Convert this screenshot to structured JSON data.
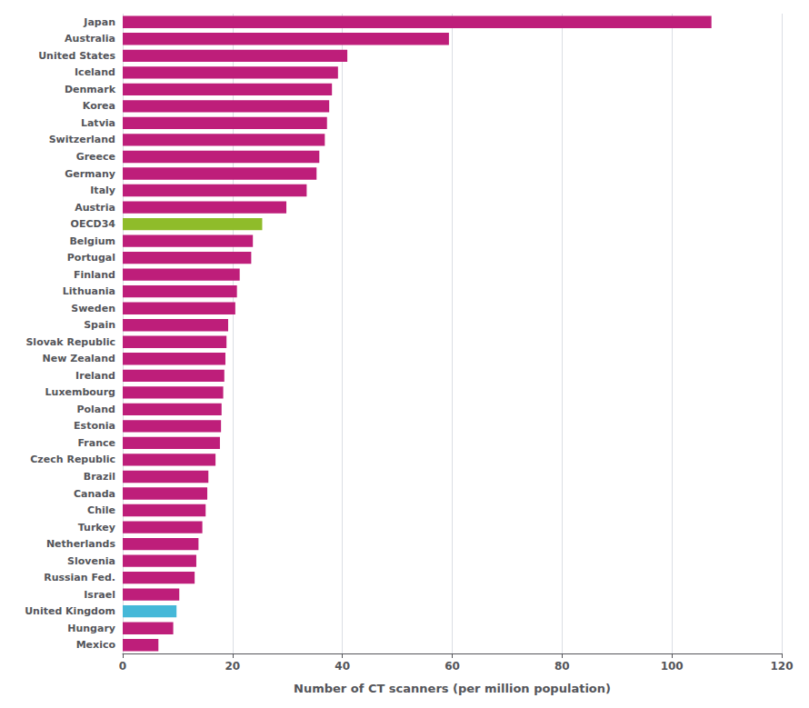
{
  "chart_data": {
    "type": "bar",
    "orientation": "horizontal",
    "categories": [
      "Japan",
      "Australia",
      "United States",
      "Iceland",
      "Denmark",
      "Korea",
      "Latvia",
      "Switzerland",
      "Greece",
      "Germany",
      "Italy",
      "Austria",
      "OECD34",
      "Belgium",
      "Portugal",
      "Finland",
      "Lithuania",
      "Sweden",
      "Spain",
      "Slovak Republic",
      "New Zealand",
      "Ireland",
      "Luxembourg",
      "Poland",
      "Estonia",
      "France",
      "Czech Republic",
      "Brazil",
      "Canada",
      "Chile",
      "Turkey",
      "Netherlands",
      "Slovenia",
      "Russian Fed.",
      "Israel",
      "United Kingdom",
      "Hungary",
      "Mexico"
    ],
    "values": [
      107.2,
      59.4,
      40.9,
      39.2,
      38.1,
      37.6,
      37.2,
      36.8,
      35.8,
      35.3,
      33.5,
      29.8,
      25.4,
      23.7,
      23.4,
      21.3,
      20.8,
      20.5,
      19.2,
      18.9,
      18.7,
      18.5,
      18.3,
      18.0,
      17.9,
      17.7,
      16.9,
      15.6,
      15.4,
      15.1,
      14.5,
      13.8,
      13.4,
      13.1,
      10.3,
      9.8,
      9.2,
      6.5
    ],
    "colors": [
      "#be1e7a",
      "#be1e7a",
      "#be1e7a",
      "#be1e7a",
      "#be1e7a",
      "#be1e7a",
      "#be1e7a",
      "#be1e7a",
      "#be1e7a",
      "#be1e7a",
      "#be1e7a",
      "#be1e7a",
      "#8fbc2a",
      "#be1e7a",
      "#be1e7a",
      "#be1e7a",
      "#be1e7a",
      "#be1e7a",
      "#be1e7a",
      "#be1e7a",
      "#be1e7a",
      "#be1e7a",
      "#be1e7a",
      "#be1e7a",
      "#be1e7a",
      "#be1e7a",
      "#be1e7a",
      "#be1e7a",
      "#be1e7a",
      "#be1e7a",
      "#be1e7a",
      "#be1e7a",
      "#be1e7a",
      "#be1e7a",
      "#be1e7a",
      "#45b8d8",
      "#be1e7a",
      "#be1e7a"
    ],
    "xlabel": "Number of CT scanners (per million population)",
    "xlim": [
      0,
      120
    ],
    "xticks": [
      0,
      20,
      40,
      60,
      80,
      100,
      120
    ],
    "grid": true
  }
}
